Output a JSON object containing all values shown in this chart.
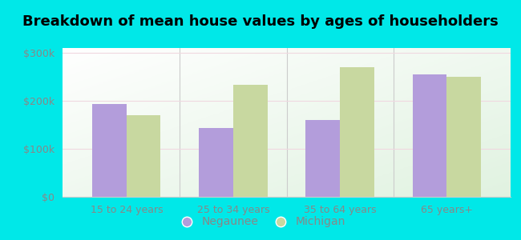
{
  "title": "Breakdown of mean house values by ages of householders",
  "categories": [
    "15 to 24 years",
    "25 to 34 years",
    "35 to 64 years",
    "65 years+"
  ],
  "negaunee_values": [
    193000,
    143000,
    160000,
    255000
  ],
  "michigan_values": [
    170000,
    233000,
    270000,
    250000
  ],
  "negaunee_color": "#b39ddb",
  "michigan_color": "#c8d8a0",
  "background_color": "#00e8e8",
  "plot_bg": "#e8f5e0",
  "ylim": [
    0,
    310000
  ],
  "yticks": [
    0,
    100000,
    200000,
    300000
  ],
  "ytick_labels": [
    "$0",
    "$100k",
    "$200k",
    "$300k"
  ],
  "legend_negaunee": "Negaunee",
  "legend_michigan": "Michigan",
  "bar_width": 0.32,
  "title_fontsize": 13,
  "tick_fontsize": 9,
  "legend_fontsize": 10
}
